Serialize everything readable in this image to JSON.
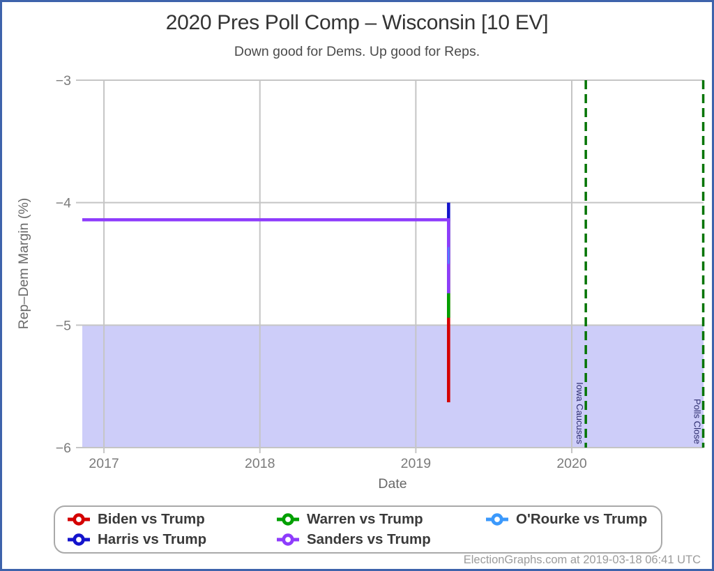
{
  "chart_data": {
    "type": "line",
    "title": "2020 Pres Poll Comp – Wisconsin [10 EV]",
    "subtitle": "Down good for Dems. Up good for Reps.",
    "xlabel": "Date",
    "ylabel": "Rep–Dem Margin (%)",
    "xlim": [
      2016.861,
      2020.845
    ],
    "ylim": [
      -6,
      -3
    ],
    "grid": true,
    "legend_position": "bottom",
    "x_axis": {
      "ticks": [
        {
          "label": "2017",
          "value": 2017
        },
        {
          "label": "2018",
          "value": 2018
        },
        {
          "label": "2019",
          "value": 2019
        },
        {
          "label": "2020",
          "value": 2020
        }
      ]
    },
    "y_axis": {
      "ticks": [
        {
          "label": "−3",
          "value": -3
        },
        {
          "label": "−4",
          "value": -4
        },
        {
          "label": "−5",
          "value": -5
        },
        {
          "label": "−6",
          "value": -6
        }
      ]
    },
    "shaded_region": {
      "from": -6,
      "to": -5,
      "color": "#cdcdf9"
    },
    "series": [
      {
        "name": "Biden vs Trump",
        "color": "#d40000",
        "points": [
          [
            2016.861,
            -4.14
          ],
          [
            2019.21,
            -4.14
          ],
          [
            2019.21,
            -5.63
          ]
        ]
      },
      {
        "name": "Harris vs Trump",
        "color": "#1414cc",
        "points": [
          [
            2016.861,
            -4.14
          ],
          [
            2019.21,
            -4.14
          ],
          [
            2019.21,
            -4.0
          ]
        ]
      },
      {
        "name": "Warren vs Trump",
        "color": "#00a000",
        "points": [
          [
            2016.861,
            -4.14
          ],
          [
            2019.21,
            -4.14
          ],
          [
            2019.21,
            -4.94
          ]
        ]
      },
      {
        "name": "Sanders vs Trump",
        "color": "#8e3cfc",
        "points": [
          [
            2016.861,
            -4.14
          ],
          [
            2019.21,
            -4.14
          ],
          [
            2019.21,
            -4.74
          ]
        ]
      },
      {
        "name": "O'Rourke vs Trump",
        "color": "#3b99fc",
        "points": [
          [
            2016.861,
            -4.14
          ],
          [
            2019.21,
            -4.14
          ],
          [
            2019.21,
            -4.5
          ]
        ]
      }
    ],
    "events": [
      {
        "label": "Iowa Caucuses",
        "x": 2020.09
      },
      {
        "label": "Polls Close",
        "x": 2020.843
      }
    ]
  },
  "footer": {
    "credit": "ElectionGraphs.com at 2019-03-18 06:41 UTC"
  }
}
